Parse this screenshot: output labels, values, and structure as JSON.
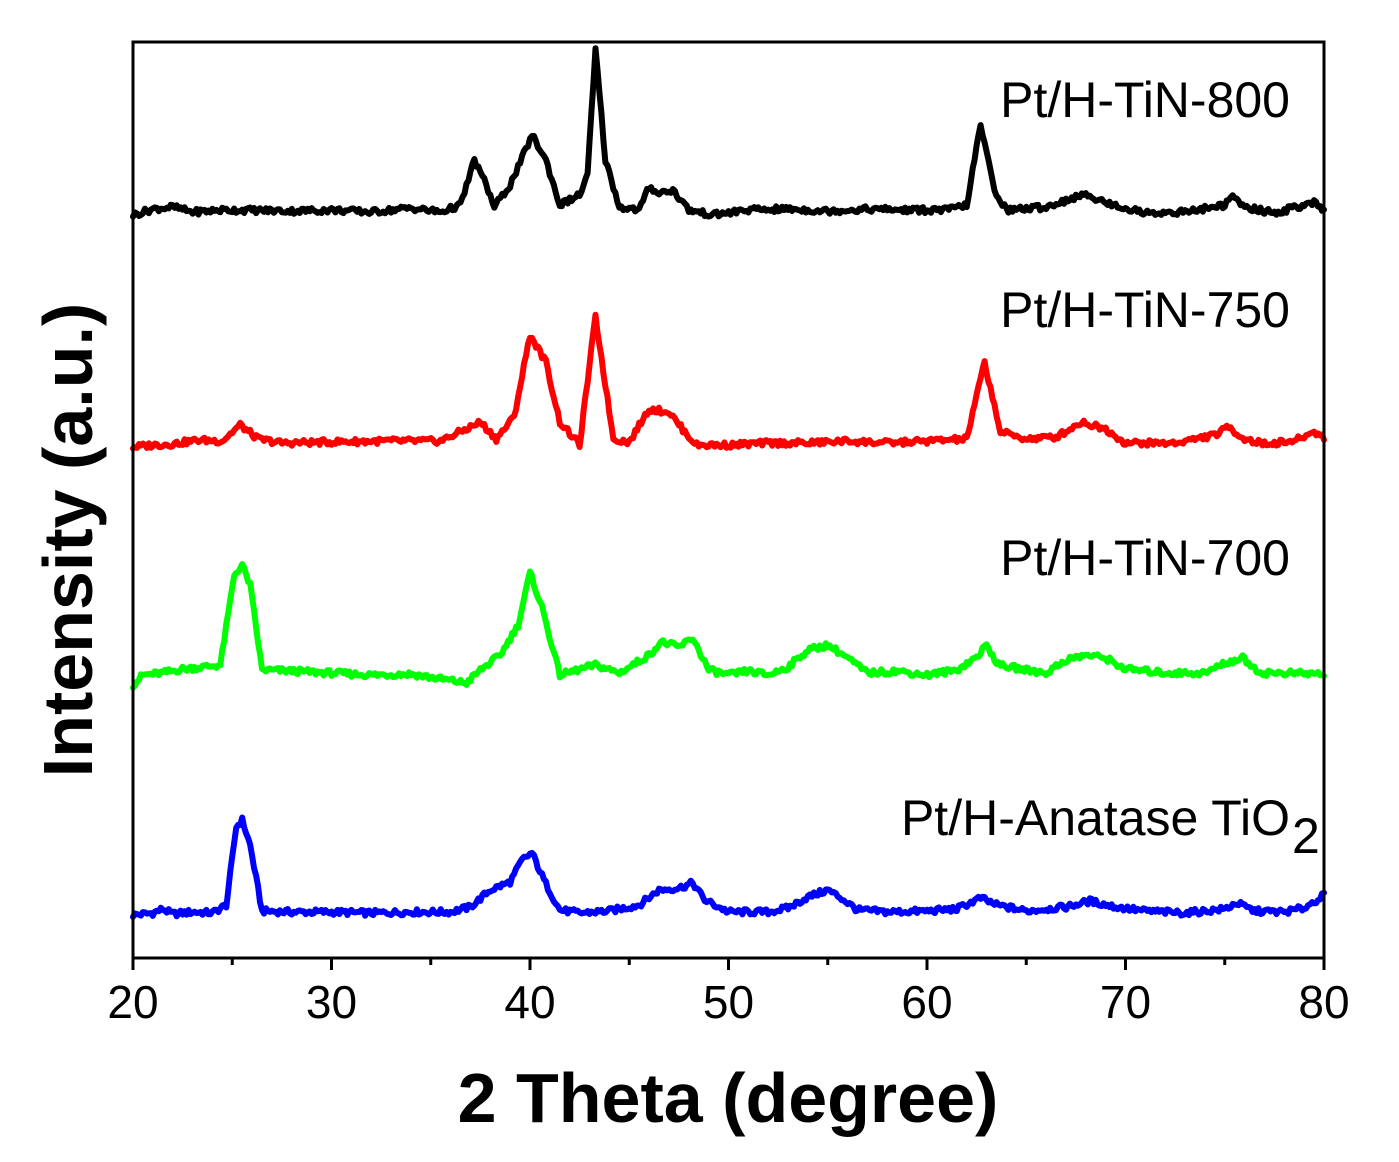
{
  "chart_data": {
    "type": "line",
    "title": "",
    "xlabel": "2 Theta (degree)",
    "ylabel": "Intensity (a.u.)",
    "xlim": [
      20,
      80
    ],
    "xticks": [
      20,
      30,
      40,
      50,
      60,
      70,
      80
    ],
    "yticks_shown": false,
    "grid": false,
    "legend": "inline labels at right",
    "series": [
      {
        "name": "Pt/H-Anatase TiO",
        "name_subscript": "2",
        "color": "#0000ff",
        "baseline": 0.0,
        "points": [
          [
            20,
            0
          ],
          [
            21,
            2
          ],
          [
            21.5,
            6
          ],
          [
            22,
            1
          ],
          [
            23,
            3
          ],
          [
            24,
            2
          ],
          [
            24.7,
            10
          ],
          [
            25.2,
            88
          ],
          [
            25.5,
            95
          ],
          [
            25.9,
            70
          ],
          [
            26.5,
            4
          ],
          [
            28,
            3
          ],
          [
            30,
            3
          ],
          [
            32,
            2
          ],
          [
            34,
            3
          ],
          [
            36,
            3
          ],
          [
            37,
            8
          ],
          [
            38,
            25
          ],
          [
            39,
            33
          ],
          [
            39.6,
            55
          ],
          [
            40.1,
            62
          ],
          [
            40.7,
            35
          ],
          [
            41.5,
            5
          ],
          [
            42.5,
            2
          ],
          [
            44,
            4
          ],
          [
            45.5,
            10
          ],
          [
            46.5,
            25
          ],
          [
            47.5,
            27
          ],
          [
            48.2,
            32
          ],
          [
            48.8,
            15
          ],
          [
            50,
            3
          ],
          [
            52,
            3
          ],
          [
            53,
            7
          ],
          [
            54,
            18
          ],
          [
            55,
            25
          ],
          [
            55.6,
            18
          ],
          [
            56.5,
            5
          ],
          [
            58,
            3
          ],
          [
            60,
            4
          ],
          [
            61.5,
            6
          ],
          [
            62.7,
            17
          ],
          [
            63.5,
            10
          ],
          [
            65,
            4
          ],
          [
            67,
            8
          ],
          [
            68.2,
            14
          ],
          [
            69.5,
            8
          ],
          [
            71,
            4
          ],
          [
            73,
            2
          ],
          [
            75,
            6
          ],
          [
            75.6,
            12
          ],
          [
            76.5,
            4
          ],
          [
            78,
            3
          ],
          [
            79,
            7
          ],
          [
            80,
            20
          ]
        ]
      },
      {
        "name": "Pt/H-TiN-700",
        "color": "#00ff00",
        "baseline": 230,
        "points": [
          [
            20,
            0
          ],
          [
            20.5,
            10
          ],
          [
            21.5,
            12
          ],
          [
            22.5,
            16
          ],
          [
            23.5,
            18
          ],
          [
            24.4,
            20
          ],
          [
            25.1,
            110
          ],
          [
            25.5,
            120
          ],
          [
            25.9,
            100
          ],
          [
            26.5,
            15
          ],
          [
            28,
            14
          ],
          [
            30,
            12
          ],
          [
            32,
            10
          ],
          [
            34,
            11
          ],
          [
            35.5,
            6
          ],
          [
            36.8,
            2
          ],
          [
            37.5,
            15
          ],
          [
            38.5,
            30
          ],
          [
            39.4,
            60
          ],
          [
            40,
            112
          ],
          [
            40.6,
            78
          ],
          [
            41.5,
            10
          ],
          [
            43.3,
            20
          ],
          [
            44.5,
            12
          ],
          [
            46,
            30
          ],
          [
            46.6,
            43
          ],
          [
            47.5,
            38
          ],
          [
            48.2,
            47
          ],
          [
            49,
            15
          ],
          [
            50,
            10
          ],
          [
            51,
            14
          ],
          [
            52,
            10
          ],
          [
            53,
            18
          ],
          [
            54,
            35
          ],
          [
            55,
            40
          ],
          [
            55.8,
            30
          ],
          [
            57,
            12
          ],
          [
            58.5,
            14
          ],
          [
            60,
            10
          ],
          [
            61.5,
            15
          ],
          [
            62.5,
            28
          ],
          [
            63,
            40
          ],
          [
            63.6,
            20
          ],
          [
            65,
            15
          ],
          [
            66,
            12
          ],
          [
            67,
            25
          ],
          [
            68,
            30
          ],
          [
            69,
            27
          ],
          [
            70,
            16
          ],
          [
            72,
            12
          ],
          [
            74,
            12
          ],
          [
            75,
            22
          ],
          [
            75.9,
            27
          ],
          [
            76.8,
            12
          ],
          [
            78,
            12
          ],
          [
            80,
            11
          ]
        ]
      },
      {
        "name": "Pt/H-TiN-750",
        "color": "#ff0000",
        "baseline": 468,
        "points": [
          [
            20,
            0
          ],
          [
            21,
            2
          ],
          [
            22,
            3
          ],
          [
            23.3,
            7
          ],
          [
            24.5,
            6
          ],
          [
            25.4,
            22
          ],
          [
            26.3,
            8
          ],
          [
            27.5,
            4
          ],
          [
            30,
            5
          ],
          [
            32.5,
            6
          ],
          [
            35.5,
            6
          ],
          [
            37,
            20
          ],
          [
            37.5,
            25
          ],
          [
            38.3,
            8
          ],
          [
            39.2,
            30
          ],
          [
            40,
            112
          ],
          [
            40.8,
            85
          ],
          [
            41.5,
            25
          ],
          [
            42.5,
            2
          ],
          [
            43.3,
            130
          ],
          [
            44.2,
            8
          ],
          [
            45,
            5
          ],
          [
            46,
            38
          ],
          [
            47,
            35
          ],
          [
            47.8,
            15
          ],
          [
            48.4,
            2
          ],
          [
            50,
            2
          ],
          [
            52,
            4
          ],
          [
            54,
            4
          ],
          [
            56,
            6
          ],
          [
            58,
            4
          ],
          [
            60,
            6
          ],
          [
            62,
            8
          ],
          [
            62.9,
            85
          ],
          [
            63.7,
            15
          ],
          [
            65,
            8
          ],
          [
            66.5,
            10
          ],
          [
            67.8,
            25
          ],
          [
            69,
            18
          ],
          [
            70,
            4
          ],
          [
            72.5,
            4
          ],
          [
            74.5,
            12
          ],
          [
            75.2,
            20
          ],
          [
            76,
            8
          ],
          [
            77,
            3
          ],
          [
            78.5,
            6
          ],
          [
            79.5,
            15
          ],
          [
            80,
            10
          ]
        ]
      },
      {
        "name": "Pt/H-TiN-800",
        "color": "#000000",
        "baseline": 700,
        "points": [
          [
            20,
            0
          ],
          [
            21,
            6
          ],
          [
            22,
            8
          ],
          [
            23,
            3
          ],
          [
            24.5,
            5
          ],
          [
            25.5,
            5
          ],
          [
            28,
            4
          ],
          [
            30,
            5
          ],
          [
            32,
            3
          ],
          [
            34,
            7
          ],
          [
            35.5,
            3
          ],
          [
            36.5,
            10
          ],
          [
            37.2,
            55
          ],
          [
            37.8,
            30
          ],
          [
            38.2,
            8
          ],
          [
            39,
            30
          ],
          [
            39.5,
            52
          ],
          [
            40.1,
            80
          ],
          [
            40.8,
            55
          ],
          [
            41.5,
            10
          ],
          [
            42.5,
            20
          ],
          [
            42.9,
            40
          ],
          [
            43.3,
            165
          ],
          [
            43.8,
            55
          ],
          [
            44.5,
            8
          ],
          [
            45.5,
            5
          ],
          [
            46,
            28
          ],
          [
            46.5,
            22
          ],
          [
            47.2,
            25
          ],
          [
            48,
            5
          ],
          [
            49.2,
            0
          ],
          [
            51,
            5
          ],
          [
            53,
            6
          ],
          [
            55,
            4
          ],
          [
            57,
            6
          ],
          [
            59,
            5
          ],
          [
            61,
            5
          ],
          [
            62,
            10
          ],
          [
            62.7,
            90
          ],
          [
            63.4,
            25
          ],
          [
            64,
            5
          ],
          [
            66,
            8
          ],
          [
            67.5,
            18
          ],
          [
            68.2,
            20
          ],
          [
            69,
            12
          ],
          [
            71,
            2
          ],
          [
            73,
            3
          ],
          [
            75,
            10
          ],
          [
            75.4,
            18
          ],
          [
            76,
            8
          ],
          [
            77.5,
            2
          ],
          [
            79,
            10
          ],
          [
            79.5,
            12
          ],
          [
            80,
            3
          ]
        ]
      }
    ]
  }
}
